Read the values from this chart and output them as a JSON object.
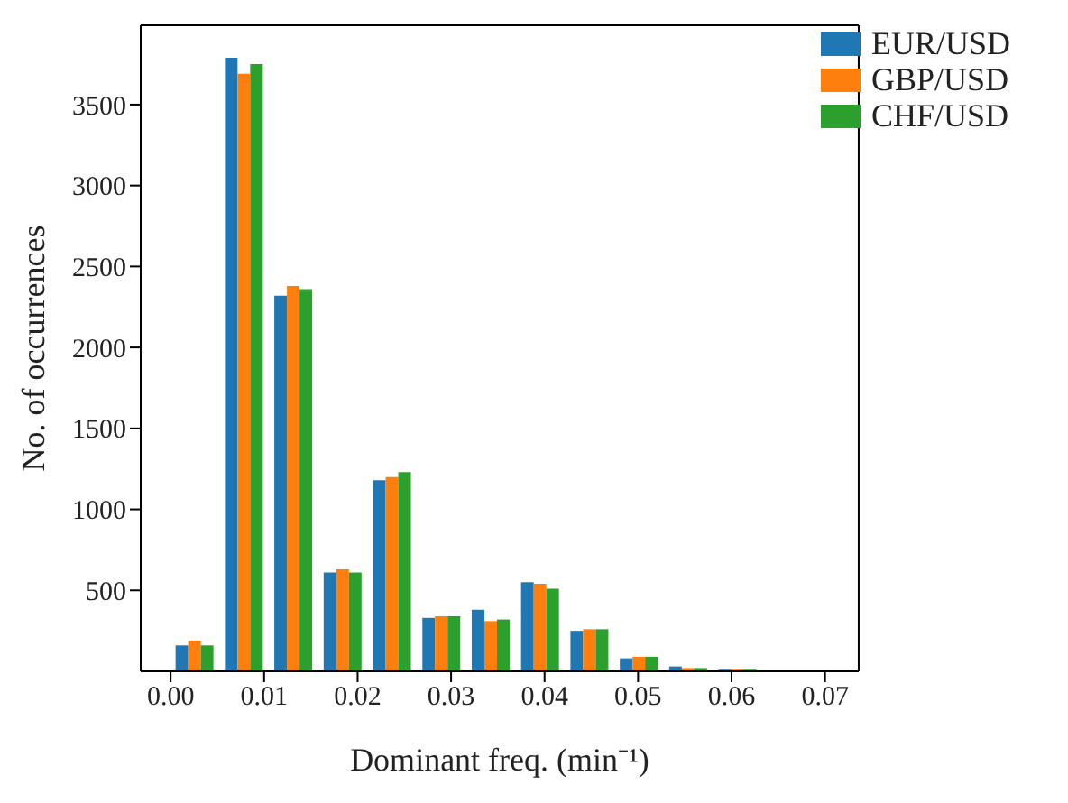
{
  "chart_data": {
    "type": "histogram",
    "xlabel": "Dominant freq. (min⁻¹)",
    "ylabel": "No. of occurrences",
    "bins": [
      0,
      0.00528,
      0.01056,
      0.01584,
      0.02112,
      0.0264,
      0.03168,
      0.03696,
      0.04224,
      0.04752,
      0.0528,
      0.05808,
      0.06336,
      0.06864,
      0.07392
    ],
    "series": [
      {
        "name": "EUR/USD",
        "color": "#1f77b4",
        "values": [
          160,
          3790,
          2320,
          610,
          1180,
          330,
          380,
          550,
          250,
          80,
          30,
          10,
          0,
          0
        ]
      },
      {
        "name": "GBP/USD",
        "color": "#ff7f0e",
        "values": [
          190,
          3690,
          2380,
          630,
          1200,
          340,
          310,
          540,
          260,
          90,
          20,
          10,
          0,
          0
        ]
      },
      {
        "name": "CHF/USD",
        "color": "#2ca02c",
        "values": [
          160,
          3750,
          2360,
          610,
          1230,
          340,
          320,
          510,
          260,
          90,
          20,
          10,
          0,
          0
        ]
      }
    ],
    "xlim": [
      -0.0032,
      0.0736
    ],
    "xticks": [
      {
        "value": 0,
        "label": "0.00"
      },
      {
        "value": 0.01,
        "label": "0.01"
      },
      {
        "value": 0.02,
        "label": "0.02"
      },
      {
        "value": 0.03,
        "label": "0.03"
      },
      {
        "value": 0.04,
        "label": "0.04"
      },
      {
        "value": 0.05,
        "label": "0.05"
      },
      {
        "value": 0.06,
        "label": "0.06"
      },
      {
        "value": 0.07,
        "label": "0.07"
      }
    ],
    "ylim": [
      0,
      3990
    ],
    "yticks": [
      500,
      1000,
      1500,
      2000,
      2500,
      3000,
      3500
    ],
    "legend": "top right",
    "grid": false
  }
}
